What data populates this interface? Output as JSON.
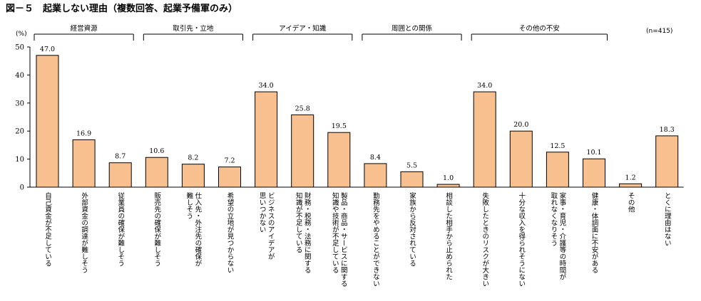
{
  "figure_title": "図－５　起業しない理由（複数回答、起業予備軍のみ）",
  "unit_label": "(%)",
  "sample_note": "(n=415)",
  "colors": {
    "bar_fill": "#f8c08e",
    "bar_stroke": "#000000"
  },
  "chart_data": {
    "type": "bar",
    "ylim": [
      0,
      50
    ],
    "yticks": [
      0,
      10,
      20,
      30,
      40,
      50
    ],
    "grid": false,
    "groups": [
      {
        "name": "経営資源",
        "start": 0,
        "end": 2
      },
      {
        "name": "取引先・立地",
        "start": 3,
        "end": 5
      },
      {
        "name": "アイデア・知識",
        "start": 6,
        "end": 8
      },
      {
        "name": "周囲との関係",
        "start": 9,
        "end": 11
      },
      {
        "name": "その他の不安",
        "start": 12,
        "end": 15
      }
    ],
    "categories": [
      [
        "自己資金が不足している"
      ],
      [
        "外部資金の調達が難しそう"
      ],
      [
        "従業員の確保が難しそう"
      ],
      [
        "販売先の確保が難しそう"
      ],
      [
        "仕入先・外注先の確保が",
        "難しそう"
      ],
      [
        "希望の立地が見つからない"
      ],
      [
        "ビジネスのアイデアが",
        "思いつかない"
      ],
      [
        "財務・税務・法務に関する",
        "知識が不足している"
      ],
      [
        "製品・商品・サービスに関する",
        "知識や技術が不足している"
      ],
      [
        "勤務先をやめることができない"
      ],
      [
        "家族から反対されている"
      ],
      [
        "相談した相手から止められた"
      ],
      [
        "失敗したときのリスクが大きい"
      ],
      [
        "十分な収入を得られそうにない"
      ],
      [
        "家事・育児・介護等の時間が",
        "取れなくなりそう"
      ],
      [
        "健康・体調面に不安がある"
      ],
      [
        "その他"
      ],
      [
        "とくに理由はない"
      ]
    ],
    "values": [
      47.0,
      16.9,
      8.7,
      10.6,
      8.2,
      7.2,
      34.0,
      25.8,
      19.5,
      8.4,
      5.5,
      1.0,
      34.0,
      20.0,
      12.5,
      10.1,
      1.2,
      18.3
    ],
    "value_labels": [
      "47.0",
      "16.9",
      "8.7",
      "10.6",
      "8.2",
      "7.2",
      "34.0",
      "25.8",
      "19.5",
      "8.4",
      "5.5",
      "1.0",
      "34.0",
      "20.0",
      "12.5",
      "10.1",
      "1.2",
      "18.3"
    ]
  }
}
